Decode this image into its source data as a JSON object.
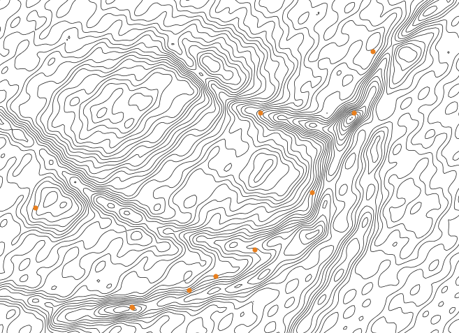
{
  "map": {
    "background_color": "#ffffff",
    "contour_color": "#1a1a1a",
    "marker_color": "#e87f1e",
    "labels_shown": false,
    "marker_count": 10
  }
}
